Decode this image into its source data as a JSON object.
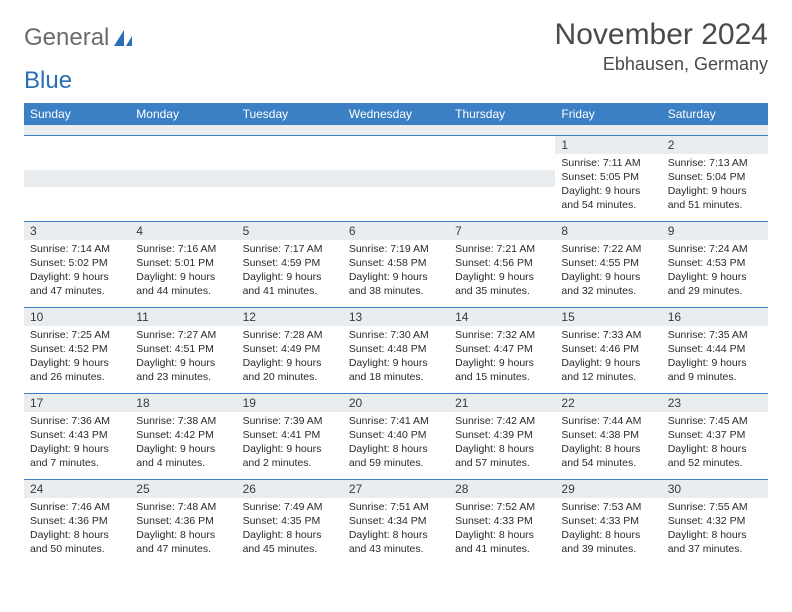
{
  "logo": {
    "text1": "General",
    "text2": "Blue"
  },
  "title": "November 2024",
  "location": "Ebhausen, Germany",
  "colors": {
    "header_bg": "#3b7fc4",
    "header_fg": "#ffffff",
    "daynum_bg": "#e9edf0",
    "text": "#2a2a2a",
    "rule": "#3b7fc4"
  },
  "dow": [
    "Sunday",
    "Monday",
    "Tuesday",
    "Wednesday",
    "Thursday",
    "Friday",
    "Saturday"
  ],
  "grid": [
    [
      null,
      null,
      null,
      null,
      null,
      {
        "n": "1",
        "sr": "Sunrise: 7:11 AM",
        "ss": "Sunset: 5:05 PM",
        "dl": "Daylight: 9 hours and 54 minutes."
      },
      {
        "n": "2",
        "sr": "Sunrise: 7:13 AM",
        "ss": "Sunset: 5:04 PM",
        "dl": "Daylight: 9 hours and 51 minutes."
      }
    ],
    [
      {
        "n": "3",
        "sr": "Sunrise: 7:14 AM",
        "ss": "Sunset: 5:02 PM",
        "dl": "Daylight: 9 hours and 47 minutes."
      },
      {
        "n": "4",
        "sr": "Sunrise: 7:16 AM",
        "ss": "Sunset: 5:01 PM",
        "dl": "Daylight: 9 hours and 44 minutes."
      },
      {
        "n": "5",
        "sr": "Sunrise: 7:17 AM",
        "ss": "Sunset: 4:59 PM",
        "dl": "Daylight: 9 hours and 41 minutes."
      },
      {
        "n": "6",
        "sr": "Sunrise: 7:19 AM",
        "ss": "Sunset: 4:58 PM",
        "dl": "Daylight: 9 hours and 38 minutes."
      },
      {
        "n": "7",
        "sr": "Sunrise: 7:21 AM",
        "ss": "Sunset: 4:56 PM",
        "dl": "Daylight: 9 hours and 35 minutes."
      },
      {
        "n": "8",
        "sr": "Sunrise: 7:22 AM",
        "ss": "Sunset: 4:55 PM",
        "dl": "Daylight: 9 hours and 32 minutes."
      },
      {
        "n": "9",
        "sr": "Sunrise: 7:24 AM",
        "ss": "Sunset: 4:53 PM",
        "dl": "Daylight: 9 hours and 29 minutes."
      }
    ],
    [
      {
        "n": "10",
        "sr": "Sunrise: 7:25 AM",
        "ss": "Sunset: 4:52 PM",
        "dl": "Daylight: 9 hours and 26 minutes."
      },
      {
        "n": "11",
        "sr": "Sunrise: 7:27 AM",
        "ss": "Sunset: 4:51 PM",
        "dl": "Daylight: 9 hours and 23 minutes."
      },
      {
        "n": "12",
        "sr": "Sunrise: 7:28 AM",
        "ss": "Sunset: 4:49 PM",
        "dl": "Daylight: 9 hours and 20 minutes."
      },
      {
        "n": "13",
        "sr": "Sunrise: 7:30 AM",
        "ss": "Sunset: 4:48 PM",
        "dl": "Daylight: 9 hours and 18 minutes."
      },
      {
        "n": "14",
        "sr": "Sunrise: 7:32 AM",
        "ss": "Sunset: 4:47 PM",
        "dl": "Daylight: 9 hours and 15 minutes."
      },
      {
        "n": "15",
        "sr": "Sunrise: 7:33 AM",
        "ss": "Sunset: 4:46 PM",
        "dl": "Daylight: 9 hours and 12 minutes."
      },
      {
        "n": "16",
        "sr": "Sunrise: 7:35 AM",
        "ss": "Sunset: 4:44 PM",
        "dl": "Daylight: 9 hours and 9 minutes."
      }
    ],
    [
      {
        "n": "17",
        "sr": "Sunrise: 7:36 AM",
        "ss": "Sunset: 4:43 PM",
        "dl": "Daylight: 9 hours and 7 minutes."
      },
      {
        "n": "18",
        "sr": "Sunrise: 7:38 AM",
        "ss": "Sunset: 4:42 PM",
        "dl": "Daylight: 9 hours and 4 minutes."
      },
      {
        "n": "19",
        "sr": "Sunrise: 7:39 AM",
        "ss": "Sunset: 4:41 PM",
        "dl": "Daylight: 9 hours and 2 minutes."
      },
      {
        "n": "20",
        "sr": "Sunrise: 7:41 AM",
        "ss": "Sunset: 4:40 PM",
        "dl": "Daylight: 8 hours and 59 minutes."
      },
      {
        "n": "21",
        "sr": "Sunrise: 7:42 AM",
        "ss": "Sunset: 4:39 PM",
        "dl": "Daylight: 8 hours and 57 minutes."
      },
      {
        "n": "22",
        "sr": "Sunrise: 7:44 AM",
        "ss": "Sunset: 4:38 PM",
        "dl": "Daylight: 8 hours and 54 minutes."
      },
      {
        "n": "23",
        "sr": "Sunrise: 7:45 AM",
        "ss": "Sunset: 4:37 PM",
        "dl": "Daylight: 8 hours and 52 minutes."
      }
    ],
    [
      {
        "n": "24",
        "sr": "Sunrise: 7:46 AM",
        "ss": "Sunset: 4:36 PM",
        "dl": "Daylight: 8 hours and 50 minutes."
      },
      {
        "n": "25",
        "sr": "Sunrise: 7:48 AM",
        "ss": "Sunset: 4:36 PM",
        "dl": "Daylight: 8 hours and 47 minutes."
      },
      {
        "n": "26",
        "sr": "Sunrise: 7:49 AM",
        "ss": "Sunset: 4:35 PM",
        "dl": "Daylight: 8 hours and 45 minutes."
      },
      {
        "n": "27",
        "sr": "Sunrise: 7:51 AM",
        "ss": "Sunset: 4:34 PM",
        "dl": "Daylight: 8 hours and 43 minutes."
      },
      {
        "n": "28",
        "sr": "Sunrise: 7:52 AM",
        "ss": "Sunset: 4:33 PM",
        "dl": "Daylight: 8 hours and 41 minutes."
      },
      {
        "n": "29",
        "sr": "Sunrise: 7:53 AM",
        "ss": "Sunset: 4:33 PM",
        "dl": "Daylight: 8 hours and 39 minutes."
      },
      {
        "n": "30",
        "sr": "Sunrise: 7:55 AM",
        "ss": "Sunset: 4:32 PM",
        "dl": "Daylight: 8 hours and 37 minutes."
      }
    ]
  ]
}
